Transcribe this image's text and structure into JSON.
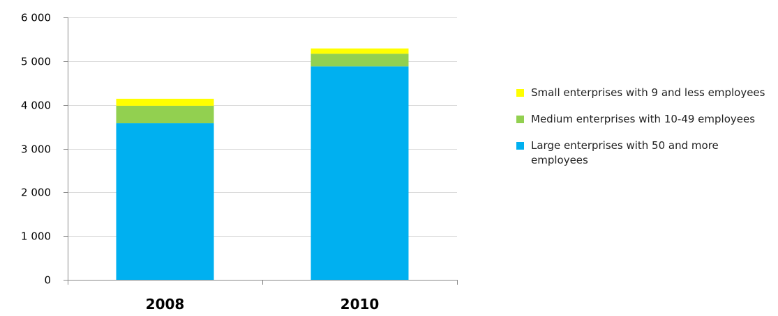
{
  "chart_data": {
    "type": "bar",
    "stacked": true,
    "categories": [
      "2008",
      "2010"
    ],
    "series": [
      {
        "name": "Large enterprises with 50 and more employees",
        "values": [
          3580,
          4880
        ],
        "color": "#00b0f0"
      },
      {
        "name": "Medium enterprises with 10-49 employees",
        "values": [
          400,
          290
        ],
        "color": "#92d050"
      },
      {
        "name": "Small enterprises with 9 and less employees",
        "values": [
          160,
          120
        ],
        "color": "#ffff00"
      }
    ],
    "legend_order": [
      2,
      1,
      0
    ],
    "title": "",
    "xlabel": "",
    "ylabel": "",
    "ylim": [
      0,
      6000
    ],
    "yticks": [
      0,
      1000,
      2000,
      3000,
      4000,
      5000,
      6000
    ],
    "ytick_labels": [
      "0",
      "1 000",
      "2 000",
      "3 000",
      "4 000",
      "5 000",
      "6 000"
    ],
    "grid": true,
    "legend_position": "right"
  }
}
